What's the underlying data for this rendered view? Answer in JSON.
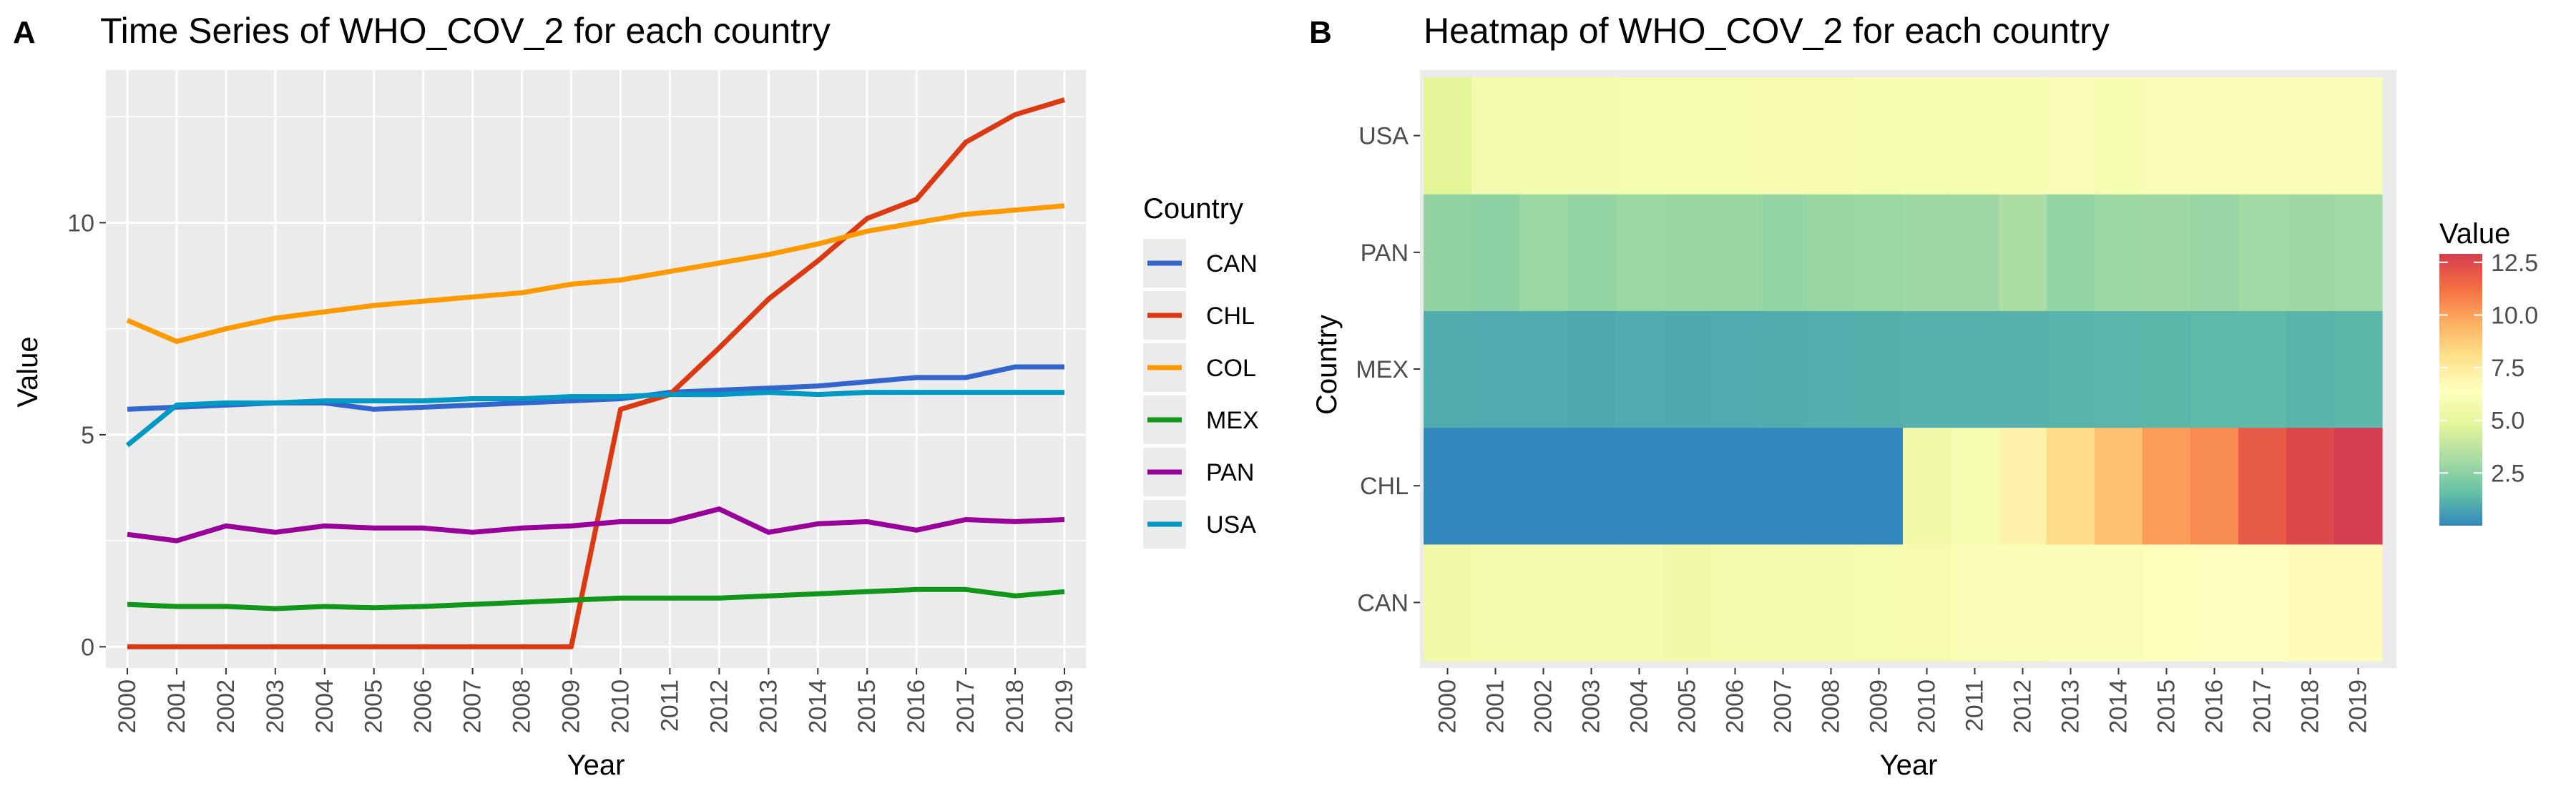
{
  "panels": {
    "a": {
      "letter": "A",
      "title": "Time Series of WHO_COV_2 for each country",
      "xlabel": "Year",
      "ylabel": "Value",
      "legend_title": "Country"
    },
    "b": {
      "letter": "B",
      "title": "Heatmap of WHO_COV_2 for each country",
      "xlabel": "Year",
      "ylabel": "Country",
      "legend_title": "Value"
    }
  },
  "chart_data": [
    {
      "type": "line",
      "title": "Time Series of WHO_COV_2 for each country",
      "xlabel": "Year",
      "ylabel": "Value",
      "x": [
        "2000",
        "2001",
        "2002",
        "2003",
        "2004",
        "2005",
        "2006",
        "2007",
        "2008",
        "2009",
        "2010",
        "2011",
        "2012",
        "2013",
        "2014",
        "2015",
        "2016",
        "2017",
        "2018",
        "2019"
      ],
      "ylim": [
        -0.5,
        13.6
      ],
      "yticks": [
        0,
        5,
        10
      ],
      "grid": true,
      "legend": "right",
      "legend_title": "Country",
      "series": [
        {
          "name": "CAN",
          "color": "#3366cc",
          "values": [
            5.6,
            5.65,
            5.7,
            5.75,
            5.75,
            5.6,
            5.65,
            5.7,
            5.75,
            5.8,
            5.85,
            6.0,
            6.05,
            6.1,
            6.15,
            6.25,
            6.35,
            6.35,
            6.6,
            6.6
          ]
        },
        {
          "name": "CHL",
          "color": "#dc3912",
          "values": [
            0,
            0,
            0,
            0,
            0,
            0,
            0,
            0,
            0,
            0,
            5.6,
            5.95,
            7.05,
            8.2,
            9.1,
            10.1,
            10.55,
            11.9,
            12.55,
            12.9
          ]
        },
        {
          "name": "COL",
          "color": "#ff9900",
          "values": [
            7.7,
            7.2,
            7.5,
            7.75,
            7.9,
            8.05,
            8.15,
            8.25,
            8.35,
            8.55,
            8.65,
            8.85,
            9.05,
            9.25,
            9.5,
            9.8,
            10.0,
            10.2,
            10.3,
            10.4
          ]
        },
        {
          "name": "MEX",
          "color": "#109618",
          "values": [
            1.0,
            0.95,
            0.95,
            0.9,
            0.95,
            0.92,
            0.95,
            1.0,
            1.05,
            1.1,
            1.15,
            1.15,
            1.15,
            1.2,
            1.25,
            1.3,
            1.35,
            1.35,
            1.2,
            1.3
          ]
        },
        {
          "name": "PAN",
          "color": "#990099",
          "values": [
            2.65,
            2.5,
            2.85,
            2.7,
            2.85,
            2.8,
            2.8,
            2.7,
            2.8,
            2.85,
            2.95,
            2.95,
            3.25,
            2.7,
            2.9,
            2.95,
            2.75,
            3.0,
            2.95,
            3.0
          ]
        },
        {
          "name": "USA",
          "color": "#0099c6",
          "values": [
            4.75,
            5.7,
            5.75,
            5.75,
            5.8,
            5.8,
            5.8,
            5.85,
            5.85,
            5.9,
            5.9,
            5.95,
            5.95,
            6.0,
            5.95,
            6.0,
            6.0,
            6.0,
            6.0,
            6.0
          ]
        }
      ]
    },
    {
      "type": "heatmap",
      "title": "Heatmap of WHO_COV_2 for each country",
      "xlabel": "Year",
      "ylabel": "Country",
      "x": [
        "2000",
        "2001",
        "2002",
        "2003",
        "2004",
        "2005",
        "2006",
        "2007",
        "2008",
        "2009",
        "2010",
        "2011",
        "2012",
        "2013",
        "2014",
        "2015",
        "2016",
        "2017",
        "2018",
        "2019"
      ],
      "rows": [
        "CAN",
        "CHL",
        "MEX",
        "PAN",
        "USA"
      ],
      "legend": "right",
      "legend_title": "Value",
      "colorbar_ticks": [
        2.5,
        5.0,
        7.5,
        10.0,
        12.5
      ],
      "colorbar_labels": [
        "2.5",
        "5.0",
        "7.5",
        "10.0",
        "12.5"
      ],
      "value_range": [
        0,
        12.9
      ],
      "palette": [
        "#3288bd",
        "#66c2a5",
        "#abdda4",
        "#e6f598",
        "#ffffbf",
        "#fee08b",
        "#fdae61",
        "#f46d43",
        "#d53e4f"
      ],
      "values": [
        [
          5.6,
          5.65,
          5.7,
          5.75,
          5.75,
          5.6,
          5.65,
          5.7,
          5.75,
          5.8,
          5.85,
          6.0,
          6.05,
          6.1,
          6.15,
          6.25,
          6.35,
          6.35,
          6.6,
          6.6
        ],
        [
          0,
          0,
          0,
          0,
          0,
          0,
          0,
          0,
          0,
          0,
          5.6,
          5.95,
          7.05,
          8.2,
          9.1,
          10.1,
          10.55,
          11.9,
          12.55,
          12.9
        ],
        [
          1.0,
          0.95,
          0.95,
          0.9,
          0.95,
          0.92,
          0.95,
          1.0,
          1.05,
          1.1,
          1.15,
          1.15,
          1.15,
          1.2,
          1.25,
          1.3,
          1.35,
          1.35,
          1.2,
          1.3
        ],
        [
          2.65,
          2.5,
          2.85,
          2.7,
          2.85,
          2.8,
          2.8,
          2.7,
          2.8,
          2.85,
          2.95,
          2.95,
          3.25,
          2.7,
          2.9,
          2.95,
          2.75,
          3.0,
          2.95,
          3.0
        ],
        [
          4.75,
          5.7,
          5.75,
          5.75,
          5.8,
          5.8,
          5.8,
          5.85,
          5.85,
          5.9,
          5.9,
          5.95,
          5.95,
          6.0,
          5.95,
          6.0,
          6.0,
          6.0,
          6.0,
          6.0
        ]
      ]
    }
  ]
}
